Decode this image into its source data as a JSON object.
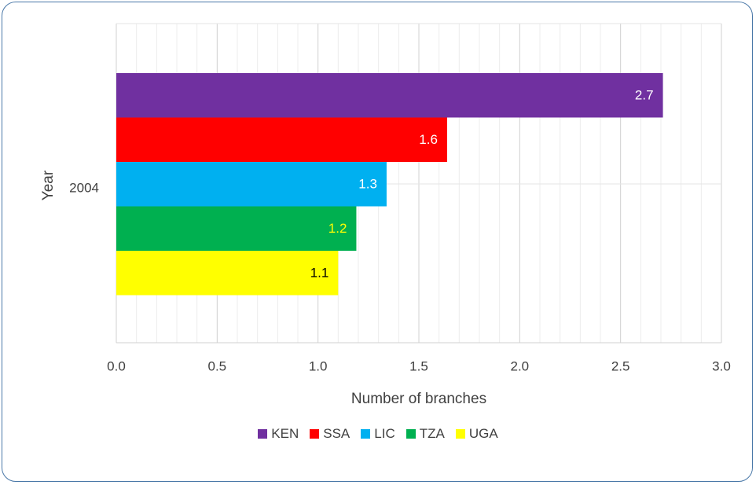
{
  "chart_data": {
    "type": "bar",
    "orientation": "horizontal",
    "categories": [
      "2004"
    ],
    "xlabel": "Number of branches",
    "ylabel": "Year",
    "xlim": [
      0,
      3.0
    ],
    "x_ticks": [
      "0.0",
      "0.5",
      "1.0",
      "1.5",
      "2.0",
      "2.5",
      "3.0"
    ],
    "grid": true,
    "legend_position": "bottom",
    "series": [
      {
        "name": "KEN",
        "values": [
          2.71
        ],
        "label": "2.7",
        "color": "#7030a0",
        "label_color": "#ffffff"
      },
      {
        "name": "SSA",
        "values": [
          1.64
        ],
        "label": "1.6",
        "color": "#ff0000",
        "label_color": "#ffffff"
      },
      {
        "name": "LIC",
        "values": [
          1.34
        ],
        "label": "1.3",
        "color": "#00b0f0",
        "label_color": "#ffffff"
      },
      {
        "name": "TZA",
        "values": [
          1.19
        ],
        "label": "1.2",
        "color": "#00b050",
        "label_color": "#ffff00"
      },
      {
        "name": "UGA",
        "values": [
          1.1
        ],
        "label": "1.1",
        "color": "#ffff00",
        "label_color": "#000000"
      }
    ]
  }
}
